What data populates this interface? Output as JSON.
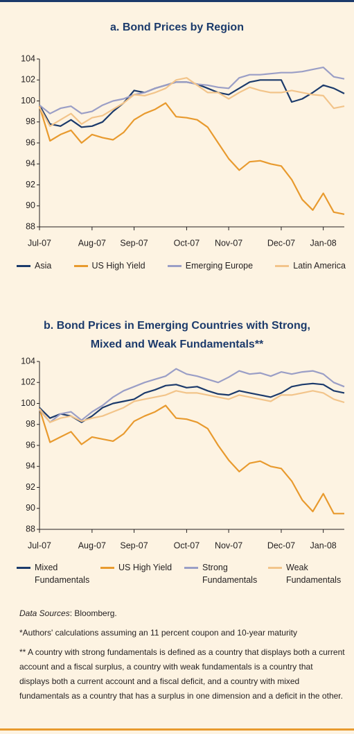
{
  "chart_data": [
    {
      "type": "line",
      "title": "a. Bond Prices by Region",
      "categories": [
        "Jul-07",
        null,
        null,
        null,
        null,
        "Aug-07",
        null,
        null,
        null,
        "Sep-07",
        null,
        null,
        null,
        null,
        "Oct-07",
        null,
        null,
        null,
        "Nov-07",
        null,
        null,
        null,
        null,
        "Dec-07",
        null,
        null,
        null,
        "Jan-08",
        null,
        null
      ],
      "series": [
        {
          "name": "Asia",
          "color": "#1b3a6b",
          "values": [
            99.6,
            97.8,
            97.6,
            98.2,
            97.5,
            97.6,
            98.0,
            99.0,
            99.8,
            101.0,
            100.8,
            101.2,
            101.5,
            101.8,
            101.8,
            101.6,
            101.2,
            100.8,
            100.6,
            101.2,
            101.8,
            102.0,
            102.0,
            102.0,
            99.9,
            100.2,
            100.8,
            101.5,
            101.2,
            100.7
          ]
        },
        {
          "name": "US High Yield",
          "color": "#e89a2e",
          "values": [
            99.5,
            96.2,
            96.8,
            97.2,
            96.0,
            96.8,
            96.5,
            96.3,
            97.0,
            98.2,
            98.8,
            99.2,
            99.8,
            98.5,
            98.4,
            98.2,
            97.5,
            96.0,
            94.5,
            93.4,
            94.2,
            94.3,
            94.0,
            93.8,
            92.5,
            90.6,
            89.6,
            91.2,
            89.4,
            89.2
          ]
        },
        {
          "name": "Emerging Europe",
          "color": "#9a9ec6",
          "values": [
            99.6,
            98.8,
            99.3,
            99.5,
            98.8,
            99.0,
            99.6,
            100.0,
            100.2,
            100.6,
            100.8,
            101.2,
            101.5,
            101.8,
            101.8,
            101.6,
            101.5,
            101.3,
            101.2,
            102.2,
            102.5,
            102.5,
            102.6,
            102.7,
            102.7,
            102.8,
            103.0,
            103.2,
            102.3,
            102.1
          ]
        },
        {
          "name": "Latin America",
          "color": "#f2c48a",
          "values": [
            99.4,
            97.6,
            98.2,
            98.8,
            97.8,
            98.4,
            98.6,
            99.2,
            99.8,
            100.6,
            100.5,
            100.8,
            101.2,
            102.0,
            102.2,
            101.5,
            100.8,
            100.8,
            100.2,
            100.8,
            101.3,
            101.0,
            100.8,
            100.8,
            101.0,
            100.8,
            100.6,
            100.5,
            99.3,
            99.5
          ]
        }
      ],
      "ylim": [
        88,
        104
      ],
      "yticks": [
        88,
        90,
        92,
        94,
        96,
        98,
        100,
        102,
        104
      ],
      "grid": false
    },
    {
      "type": "line",
      "title": "b. Bond Prices in Emerging Countries with Strong, Mixed and Weak Fundamentals**",
      "categories": [
        "Jul-07",
        null,
        null,
        null,
        null,
        "Aug-07",
        null,
        null,
        null,
        "Sep-07",
        null,
        null,
        null,
        null,
        "Oct-07",
        null,
        null,
        null,
        "Nov-07",
        null,
        null,
        null,
        null,
        "Dec-07",
        null,
        null,
        null,
        "Jan-08",
        null,
        null
      ],
      "series": [
        {
          "name": "Mixed Fundamentals",
          "color": "#1b3a6b",
          "values": [
            99.6,
            98.6,
            99.0,
            98.8,
            98.2,
            98.8,
            99.6,
            100.0,
            100.2,
            100.4,
            101.0,
            101.3,
            101.7,
            101.8,
            101.5,
            101.6,
            101.2,
            100.9,
            100.8,
            101.2,
            101.0,
            100.8,
            100.6,
            101.0,
            101.6,
            101.8,
            101.9,
            101.8,
            101.2,
            101.0
          ]
        },
        {
          "name": "US High Yield",
          "color": "#e89a2e",
          "values": [
            99.5,
            96.3,
            96.8,
            97.3,
            96.1,
            96.8,
            96.6,
            96.4,
            97.1,
            98.3,
            98.8,
            99.2,
            99.8,
            98.6,
            98.5,
            98.2,
            97.6,
            96.0,
            94.6,
            93.5,
            94.3,
            94.5,
            94.0,
            93.8,
            92.6,
            90.8,
            89.7,
            91.4,
            89.5,
            89.5
          ]
        },
        {
          "name": "Strong Fundamentals",
          "color": "#9a9ec6",
          "values": [
            99.4,
            98.2,
            99.0,
            99.2,
            98.4,
            99.2,
            99.8,
            100.6,
            101.2,
            101.6,
            102.0,
            102.3,
            102.6,
            103.3,
            102.8,
            102.6,
            102.3,
            102.0,
            102.5,
            103.1,
            102.8,
            102.9,
            102.6,
            103.0,
            102.8,
            103.0,
            103.1,
            102.8,
            102.0,
            101.6
          ]
        },
        {
          "name": "Weak Fundamentals",
          "color": "#f2c48a",
          "values": [
            99.5,
            98.2,
            98.6,
            98.8,
            98.3,
            98.6,
            98.8,
            99.2,
            99.6,
            100.2,
            100.4,
            100.6,
            100.8,
            101.2,
            101.0,
            101.0,
            100.8,
            100.6,
            100.4,
            100.8,
            100.6,
            100.4,
            100.2,
            100.8,
            100.8,
            101.0,
            101.2,
            101.0,
            100.4,
            100.1
          ]
        }
      ],
      "ylim": [
        88,
        104
      ],
      "yticks": [
        88,
        90,
        92,
        94,
        96,
        98,
        100,
        102,
        104
      ],
      "grid": false
    }
  ],
  "notes": {
    "source_label": "Data Sources",
    "source": ": Bloomberg.",
    "footnote1": "*Authors' calculations assuming an 11 percent coupon and 10-year maturity",
    "footnote2": "** A country with strong fundamentals is defined as a country that displays both a current account and a fiscal surplus, a country with weak fundamentals is a country that displays both a current account and a fiscal deficit, and a country with mixed fundamentals as a country that has a surplus in one dimension and a deficit in the other."
  }
}
